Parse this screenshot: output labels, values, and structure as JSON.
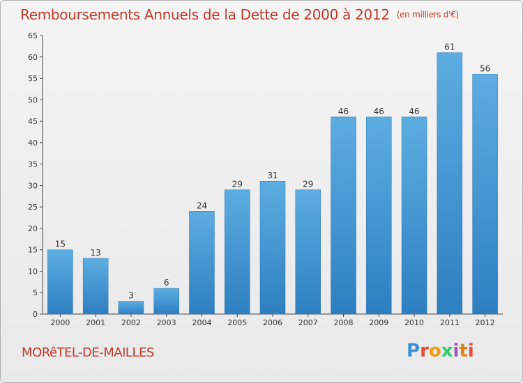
{
  "chart_data": {
    "type": "bar",
    "title": "Remboursements Annuels de la Dette de 2000 à 2012",
    "unit": "(en milliers d'€)",
    "categories": [
      "2000",
      "2001",
      "2002",
      "2003",
      "2004",
      "2005",
      "2006",
      "2007",
      "2008",
      "2009",
      "2010",
      "2011",
      "2012"
    ],
    "values": [
      15,
      13,
      3,
      6,
      24,
      29,
      31,
      29,
      46,
      46,
      46,
      61,
      56
    ],
    "ylim": [
      0,
      65
    ],
    "yticks": [
      0,
      5,
      10,
      15,
      20,
      25,
      30,
      35,
      40,
      45,
      50,
      55,
      60,
      65
    ],
    "xlabel": "",
    "ylabel": "",
    "grid": false,
    "bar_color": "#3b8fd4"
  },
  "footer": {
    "commune": "MORêTEL-DE-MAILLES",
    "logo": "Proxiti"
  }
}
